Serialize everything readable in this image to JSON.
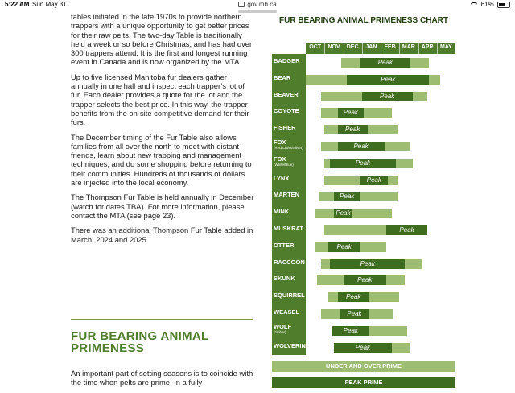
{
  "status": {
    "time": "5:22 AM",
    "date": "Sun May 31",
    "url": "gov.mb.ca",
    "battery": "61%"
  },
  "article": {
    "p1": "tables initiated in the late 1970s to provide northern trappers with a unique opportunity to get better prices for their raw pelts. The two-day Table is traditionally held a week or so before Christmas, and has had over 300 trappers attend. It is the first and longest running event in Canada and is now organized by the MTA.",
    "p2": "Up to five licensed Manitoba fur dealers gather annually in one hall and inspect each trapper’s lot of fur. Each dealer provides a quote for the lot and the trapper selects the best price. In this way, the trapper benefits from the on-site competitive demand for their furs.",
    "p3": "The December timing of the Fur Table also allows families from all over the north to meet with distant friends, learn about new trapping and management techniques, and do some shopping before returning to their communities. Hundreds of thousands of dollars are injected into the local economy.",
    "p4": "The Thompson Fur Table is held annually in December (watch for dates TBA). For more information, please contact the MTA (see page 23).",
    "p5": "There was an additional Thompson Fur Table added in March, 2024 and 2025.",
    "section_heading": "FUR BEARING ANIMAL PRIMENESS",
    "p6": "An important part of setting seasons is to coincide with the time when pelts are prime. In a fully"
  },
  "chart_data": {
    "type": "table",
    "title": "FUR BEARING ANIMAL PRIMENESS CHART",
    "months": [
      "OCT",
      "NOV",
      "DEC",
      "JAN",
      "FEB",
      "MAR",
      "APR",
      "MAY"
    ],
    "peak_label": "Peak",
    "rows": [
      {
        "species": "BADGER",
        "prime": [
          1.9,
          6.6
        ],
        "peak": [
          2.9,
          5.6
        ]
      },
      {
        "species": "BEAR",
        "prime": [
          0.0,
          7.2
        ],
        "peak": [
          2.2,
          6.6
        ]
      },
      {
        "species": "BEAVER",
        "prime": [
          0.8,
          6.5
        ],
        "peak": [
          3.0,
          5.7
        ]
      },
      {
        "species": "COYOTE",
        "prime": [
          0.8,
          4.6
        ],
        "peak": [
          1.7,
          3.1
        ]
      },
      {
        "species": "FISHER",
        "prime": [
          1.0,
          4.9
        ],
        "peak": [
          1.7,
          3.3
        ]
      },
      {
        "species": "FOX",
        "note": "(Red/Cross/Silver)",
        "prime": [
          0.8,
          5.6
        ],
        "peak": [
          1.7,
          4.2
        ]
      },
      {
        "species": "FOX",
        "note": "(White/Blue)",
        "prime": [
          1.0,
          5.7
        ],
        "peak": [
          1.3,
          4.8
        ]
      },
      {
        "species": "LYNX",
        "prime": [
          1.0,
          4.9
        ],
        "peak": [
          2.9,
          4.4
        ]
      },
      {
        "species": "MARTEN",
        "prime": [
          0.7,
          4.9
        ],
        "peak": [
          1.5,
          2.9
        ]
      },
      {
        "species": "MINK",
        "prime": [
          0.5,
          4.6
        ],
        "peak": [
          1.5,
          2.5
        ]
      },
      {
        "species": "MUSKRAT",
        "prime": [
          1.0,
          6.5
        ],
        "peak": [
          4.3,
          6.5
        ]
      },
      {
        "species": "OTTER",
        "prime": [
          0.5,
          4.3
        ],
        "peak": [
          1.2,
          2.9
        ]
      },
      {
        "species": "RACCOON",
        "prime": [
          0.8,
          6.2
        ],
        "peak": [
          1.3,
          5.3
        ]
      },
      {
        "species": "SKUNK",
        "prime": [
          0.6,
          5.3
        ],
        "peak": [
          2.0,
          4.3
        ]
      },
      {
        "species": "SQUIRREL",
        "prime": [
          1.2,
          5.0
        ],
        "peak": [
          1.7,
          3.4
        ]
      },
      {
        "species": "WEASEL",
        "prime": [
          0.8,
          4.7
        ],
        "peak": [
          1.8,
          3.4
        ]
      },
      {
        "species": "WOLF",
        "note": "(timber)",
        "prime": [
          1.4,
          5.4
        ],
        "peak": [
          1.4,
          3.4
        ]
      },
      {
        "species": "WOLVERINE",
        "prime": [
          1.5,
          5.6
        ],
        "peak": [
          1.5,
          4.6
        ]
      }
    ],
    "legend": {
      "under_over": "UNDER AND OVER PRIME",
      "peak": "PEAK PRIME"
    },
    "colors": {
      "header": "#4f7d2b",
      "prime": "#9dbd73",
      "peak": "#3f6d1f"
    }
  }
}
